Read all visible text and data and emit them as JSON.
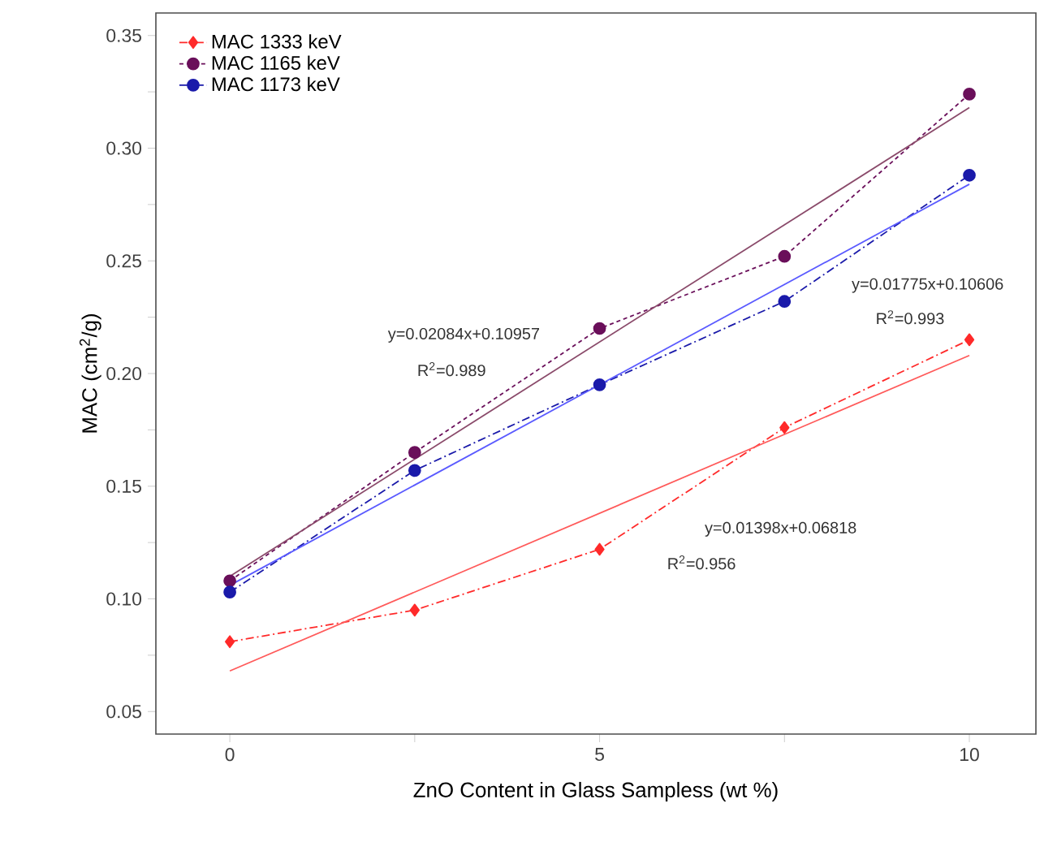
{
  "chart_data": {
    "type": "line",
    "xlabel": "ZnO Content in Glass Sampless (wt %)",
    "ylabel": "MAC (cm$^{2}$/g)",
    "xlim": [
      -1,
      10.9
    ],
    "ylim": [
      0.04,
      0.36
    ],
    "xticks": [
      0,
      {
        "value": 2.5,
        "label": null
      },
      5,
      {
        "value": 7.5,
        "label": null
      },
      10
    ],
    "yticks": [
      0.05,
      {
        "value": 0.075,
        "label": null
      },
      {
        "value": 0.1,
        "label": "0.10"
      },
      {
        "value": 0.125,
        "label": null
      },
      0.15,
      {
        "value": 0.175,
        "label": null
      },
      {
        "value": 0.2,
        "label": "0.20"
      },
      {
        "value": 0.225,
        "label": null
      },
      0.25,
      {
        "value": 0.275,
        "label": null
      },
      {
        "value": 0.3,
        "label": "0.30"
      },
      {
        "value": 0.325,
        "label": null
      },
      0.35
    ],
    "legend": "top left",
    "grid": false,
    "series": [
      {
        "name": "MAC 1333 keV",
        "color": "#ff2a2a",
        "x": [
          0,
          2.5,
          5,
          7.5,
          10
        ],
        "values": [
          0.081,
          0.095,
          0.122,
          0.176,
          0.215
        ],
        "marker": "diamond",
        "line_style": "dashed"
      },
      {
        "name": "MAC 1165 keV",
        "color": "#6a0f5a",
        "x": [
          0,
          2.5,
          5,
          7.5,
          10
        ],
        "values": [
          0.108,
          0.165,
          0.22,
          0.252,
          0.324
        ],
        "marker": "circle",
        "line_style": "dotted"
      },
      {
        "name": "MAC 1173 keV",
        "color": "#1a1aaa",
        "x": [
          0,
          2.5,
          5,
          7.5,
          10
        ],
        "values": [
          0.103,
          0.157,
          0.195,
          0.232,
          0.288
        ],
        "marker": "circle",
        "line_style": "dashed"
      },
      {
        "color": "#ff5a5a",
        "x": [
          0,
          10
        ],
        "values": [
          0.068,
          0.208
        ],
        "marker": "none",
        "line_style": "solid"
      },
      {
        "color": "#8a4a6a",
        "x": [
          0,
          10
        ],
        "values": [
          0.11,
          0.318
        ],
        "marker": "none",
        "line_style": "solid"
      },
      {
        "color": "#5a5aff",
        "x": [
          0,
          10
        ],
        "values": [
          0.106,
          0.284
        ],
        "marker": "none",
        "line_style": "solid"
      }
    ],
    "annotations": [
      "y=0.02084x+0.10957",
      "R$^{2}$=0.989",
      "y=0.01775x+0.10606",
      "R$^{2}$=0.993",
      "y=0.01398x+0.06818",
      "R$^{2}$=0.956"
    ]
  }
}
